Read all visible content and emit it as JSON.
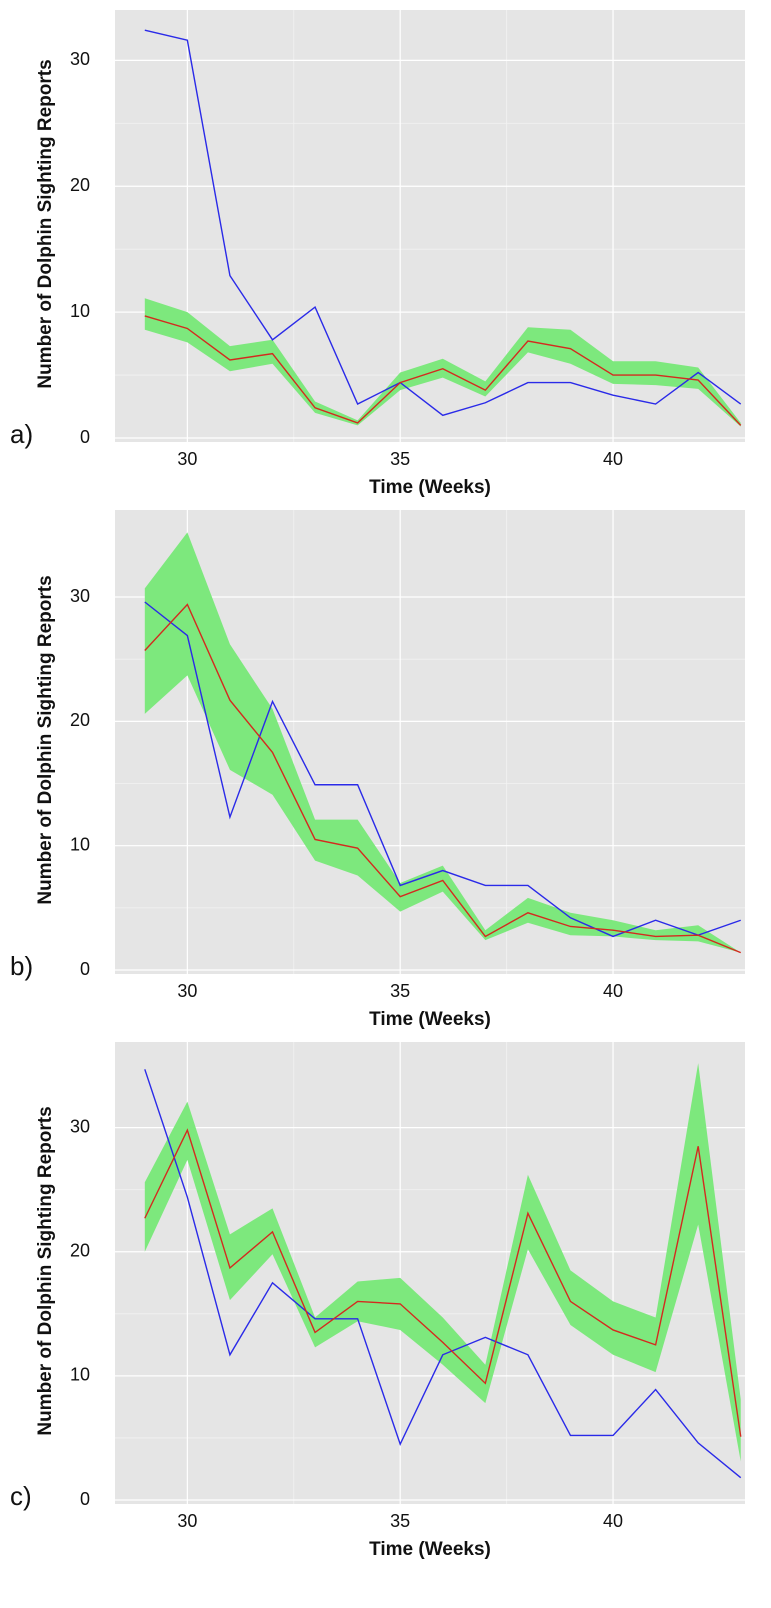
{
  "chart_data": [
    {
      "type": "line",
      "label": "a)",
      "ylabel": "Number of Dolphin Sighting Reports",
      "xlabel": "Time (Weeks)",
      "x": [
        29,
        30,
        31,
        32,
        33,
        34,
        35,
        36,
        37,
        38,
        39,
        40,
        41,
        42,
        43
      ],
      "xlim": [
        28.3,
        43.1
      ],
      "ylim": [
        0,
        34
      ],
      "xticks": [
        30,
        35,
        40
      ],
      "yticks": [
        0,
        10,
        20,
        30
      ],
      "grid": true,
      "band": {
        "color": "#7de87d",
        "upper": [
          11.1,
          10.0,
          7.3,
          7.8,
          2.9,
          1.4,
          5.2,
          6.3,
          4.5,
          8.8,
          8.6,
          6.1,
          6.1,
          5.6,
          1.2
        ],
        "lower": [
          8.6,
          7.6,
          5.3,
          5.9,
          2.0,
          1.0,
          3.8,
          4.8,
          3.3,
          6.8,
          5.9,
          4.3,
          4.2,
          3.9,
          0.9
        ]
      },
      "series": [
        {
          "color": "#2a2ae8",
          "values": [
            32.4,
            31.6,
            12.9,
            7.8,
            10.4,
            2.7,
            4.4,
            1.8,
            2.8,
            4.4,
            4.4,
            3.4,
            2.7,
            5.2,
            2.7
          ]
        },
        {
          "color": "#d42a1e",
          "values": [
            9.7,
            8.7,
            6.2,
            6.7,
            2.4,
            1.2,
            4.4,
            5.5,
            3.8,
            7.7,
            7.1,
            5.0,
            5.0,
            4.6,
            1.0
          ]
        }
      ]
    },
    {
      "type": "line",
      "label": "b)",
      "ylabel": "Number of Dolphin Sighting Reports",
      "xlabel": "Time (Weeks)",
      "x": [
        29,
        30,
        31,
        32,
        33,
        34,
        35,
        36,
        37,
        38,
        39,
        40,
        41,
        42,
        43
      ],
      "xlim": [
        28.3,
        43.1
      ],
      "ylim": [
        0,
        37
      ],
      "xticks": [
        30,
        35,
        40
      ],
      "yticks": [
        0,
        10,
        20,
        30
      ],
      "grid": true,
      "band": {
        "color": "#7de87d",
        "upper": [
          30.7,
          35.2,
          26.2,
          21.0,
          12.1,
          12.1,
          7.0,
          8.4,
          3.2,
          5.8,
          4.6,
          4.0,
          3.2,
          3.6,
          1.4
        ],
        "lower": [
          20.6,
          23.7,
          16.1,
          14.1,
          8.8,
          7.6,
          4.7,
          6.3,
          2.4,
          3.8,
          2.8,
          2.7,
          2.4,
          2.3,
          1.4
        ]
      },
      "series": [
        {
          "color": "#2a2ae8",
          "values": [
            29.6,
            26.9,
            12.3,
            21.6,
            14.9,
            14.9,
            6.8,
            8.0,
            6.8,
            6.8,
            4.2,
            2.7,
            4.0,
            2.8,
            4.0
          ]
        },
        {
          "color": "#d42a1e",
          "values": [
            25.7,
            29.4,
            21.7,
            17.5,
            10.5,
            9.8,
            5.9,
            7.2,
            2.7,
            4.6,
            3.5,
            3.2,
            2.7,
            2.8,
            1.4
          ]
        }
      ]
    },
    {
      "type": "line",
      "label": "c)",
      "ylabel": "Number of Dolphin Sighting Reports",
      "xlabel": "Time (Weeks)",
      "x": [
        29,
        30,
        31,
        32,
        33,
        34,
        35,
        36,
        37,
        38,
        39,
        40,
        41,
        42,
        43
      ],
      "xlim": [
        28.3,
        43.1
      ],
      "ylim": [
        0,
        36.9
      ],
      "xticks": [
        30,
        35,
        40
      ],
      "yticks": [
        0,
        10,
        20,
        30
      ],
      "grid": true,
      "band": {
        "color": "#7de87d",
        "upper": [
          25.6,
          32.1,
          21.4,
          23.5,
          14.7,
          17.6,
          17.9,
          14.7,
          10.9,
          26.2,
          18.5,
          16.0,
          14.7,
          35.2,
          8.1
        ],
        "lower": [
          20.0,
          27.4,
          16.1,
          19.8,
          12.3,
          14.4,
          13.7,
          10.9,
          7.8,
          20.2,
          14.1,
          11.7,
          10.3,
          22.2,
          3.1
        ]
      },
      "series": [
        {
          "color": "#2a2ae8",
          "values": [
            34.7,
            24.4,
            11.7,
            17.5,
            14.6,
            14.6,
            4.5,
            11.7,
            13.1,
            11.7,
            5.2,
            5.2,
            8.9,
            4.6,
            1.8
          ]
        },
        {
          "color": "#d42a1e",
          "values": [
            22.7,
            29.8,
            18.7,
            21.6,
            13.5,
            16.0,
            15.8,
            12.7,
            9.4,
            23.1,
            16.0,
            13.7,
            12.5,
            28.5,
            5.1
          ]
        }
      ]
    }
  ]
}
